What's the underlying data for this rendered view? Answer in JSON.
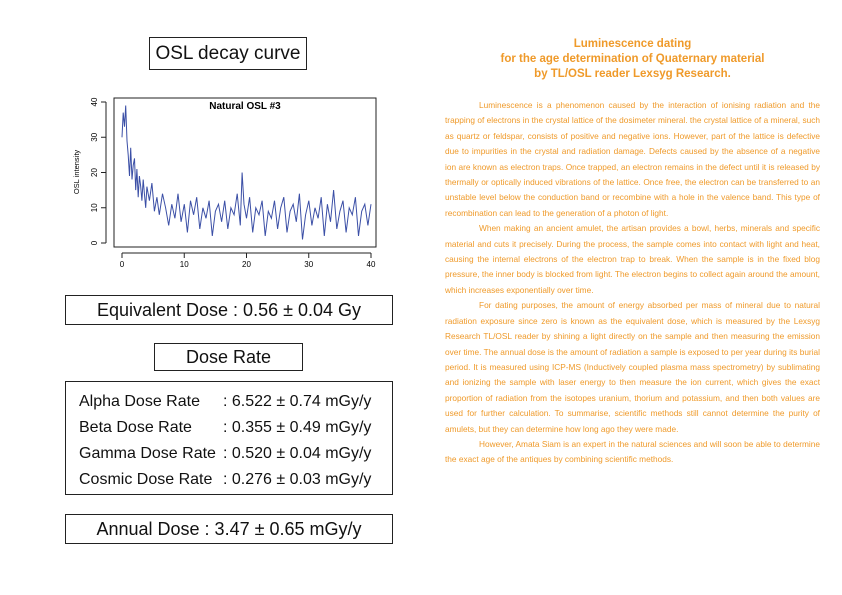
{
  "left": {
    "osl_title": "OSL decay curve",
    "equivalent_dose": "Equivalent Dose : 0.56 ± 0.04 Gy",
    "dose_rate_title": "Dose Rate",
    "dose_rates": [
      {
        "name": "Alpha Dose Rate",
        "value": ": 6.522 ± 0.74 mGy/y"
      },
      {
        "name": "Beta Dose Rate",
        "value": ": 0.355 ± 0.49 mGy/y"
      },
      {
        "name": "Gamma Dose Rate",
        "value": ": 0.520 ± 0.04 mGy/y"
      },
      {
        "name": "Cosmic Dose Rate",
        "value": ": 0.276 ± 0.03 mGy/y"
      }
    ],
    "annual_dose": "Annual Dose : 3.47 ± 0.65 mGy/y"
  },
  "chart_data": {
    "type": "line",
    "title": "Natural OSL #3",
    "xlabel": "",
    "ylabel": "OSL intensity",
    "xlim": [
      0,
      40
    ],
    "ylim": [
      0,
      40
    ],
    "xticks": [
      "0",
      "10",
      "20",
      "30",
      "40"
    ],
    "yticks": [
      "0",
      "10",
      "20",
      "30",
      "40"
    ],
    "grid": false,
    "series": [
      {
        "color": "#3b4fa6",
        "x": [
          0,
          0.2,
          0.4,
          0.6,
          0.8,
          1,
          1.2,
          1.4,
          1.6,
          1.8,
          2,
          2.2,
          2.4,
          2.6,
          2.8,
          3,
          3.2,
          3.4,
          3.6,
          3.8,
          4,
          4.4,
          4.8,
          5.2,
          5.6,
          6,
          6.5,
          7,
          7.5,
          8,
          8.5,
          9,
          9.5,
          10,
          10.5,
          11,
          11.5,
          12,
          12.5,
          13,
          13.5,
          14,
          14.5,
          15,
          15.5,
          16,
          16.5,
          17,
          17.5,
          18,
          18.5,
          19,
          19.3,
          19.6,
          20,
          20.5,
          21,
          21.5,
          22,
          22.5,
          23,
          23.5,
          24,
          24.5,
          25,
          25.5,
          26,
          26.5,
          27,
          27.5,
          28,
          28.5,
          29,
          29.5,
          30,
          30.5,
          31,
          31.5,
          32,
          32.5,
          33,
          33.5,
          34,
          34.5,
          35,
          35.5,
          36,
          36.5,
          37,
          37.5,
          38,
          38.5,
          39,
          39.5,
          40
        ],
        "values": [
          30,
          37,
          33,
          39,
          29,
          25,
          19,
          27,
          18,
          22,
          24,
          15,
          21,
          13,
          19,
          16,
          12,
          18,
          14,
          10,
          16,
          12,
          17,
          9,
          13,
          8,
          14,
          10,
          5,
          11,
          7,
          14,
          6,
          11,
          3,
          12,
          8,
          13,
          4,
          10,
          7,
          12,
          2,
          9,
          11,
          6,
          12,
          4,
          10,
          8,
          14,
          5,
          20,
          11,
          7,
          13,
          3,
          10,
          8,
          12,
          2,
          9,
          7,
          12,
          4,
          10,
          13,
          3,
          9,
          11,
          6,
          14,
          1,
          8,
          12,
          5,
          10,
          7,
          13,
          2,
          11,
          6,
          15,
          4,
          9,
          12,
          3,
          10,
          8,
          13,
          2,
          9,
          11,
          5,
          11
        ]
      }
    ]
  },
  "article": {
    "title_lines": [
      "Luminescence dating",
      "for the age determination of Quaternary material",
      "by TL/OSL reader Lexsyg Research."
    ],
    "paragraphs": [
      "Luminescence is a phenomenon caused by the interaction of ionising radiation and the trapping of electrons in the crystal lattice of the dosimeter mineral. the crystal lattice of a mineral, such as quartz or feldspar, consists of positive and negative ions. However, part of the lattice is defective due to impurities in the crystal and radiation damage. Defects caused by the absence of a negative ion are known as electron traps. Once trapped, an electron remains in the defect until it is released by thermally or optically induced vibrations of the lattice. Once free, the electron can be transferred to an unstable level below the conduction band or recombine with a hole in the valence band. This type of recombination can lead to the generation of a photon of light.",
      "When making an ancient amulet, the artisan provides a bowl, herbs, minerals and specific material and cuts it precisely. During the process, the sample comes into contact with light and heat, causing the internal electrons of the electron trap to break. When the sample is in the fixed blog pressure, the inner body is blocked from light. The electron begins to collect again around the amount, which increases exponentially over time.",
      "For dating purposes, the amount of energy absorbed per mass of mineral due to natural radiation exposure since zero is known as the equivalent dose, which is measured by the Lexsyg Research TL/OSL reader by shining a light directly on the sample and then measuring the emission over time. The annual dose is the amount of radiation a sample is exposed to per year during its burial period. It is measured using ICP-MS (Inductively coupled plasma mass spectrometry) by sublimating and ionizing the sample with laser energy to then measure the ion current, which gives the exact proportion of radiation from the isotopes uranium, thorium and potassium, and then both values are used for further calculation. To summarise, scientific methods still cannot determine the purity of amulets, but they can determine how long ago they were made.",
      "However, Amata Siam is an expert in the natural sciences and will soon be able to determine the exact age of the antiques by combining scientific methods."
    ]
  }
}
